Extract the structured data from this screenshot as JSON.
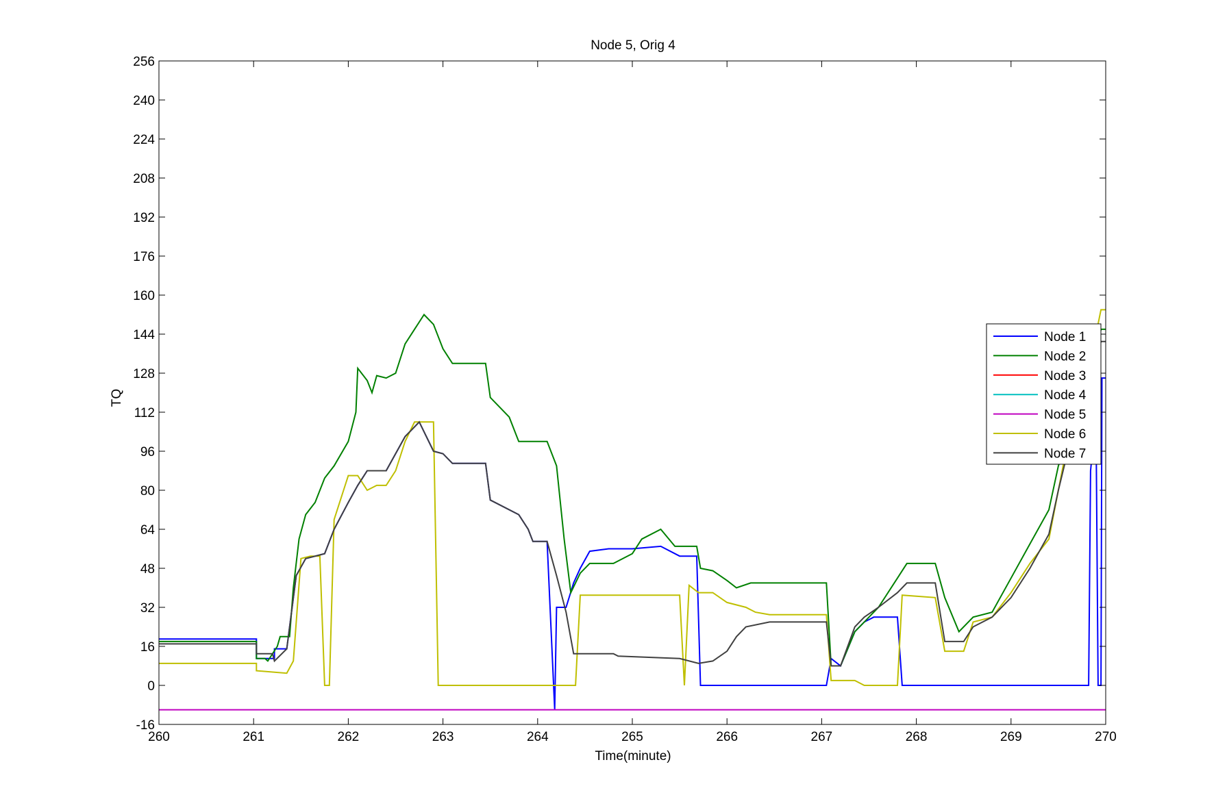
{
  "chart_data": {
    "type": "line",
    "title": "Node 5, Orig 4",
    "xlabel": "Time(minute)",
    "ylabel": "TQ",
    "xlim": [
      260,
      270
    ],
    "ylim": [
      -16,
      256
    ],
    "xticks": [
      260,
      261,
      262,
      263,
      264,
      265,
      266,
      267,
      268,
      269,
      270
    ],
    "yticks": [
      -16,
      0,
      16,
      32,
      48,
      64,
      80,
      96,
      112,
      128,
      144,
      160,
      176,
      192,
      208,
      224,
      240,
      256
    ],
    "grid": false,
    "legend_position": "right",
    "series": [
      {
        "name": "Node  1",
        "color": "#0000ff",
        "points": [
          [
            260,
            19
          ],
          [
            261.03,
            19
          ],
          [
            261.03,
            11
          ],
          [
            261.22,
            11
          ],
          [
            261.22,
            15
          ],
          [
            261.35,
            15
          ],
          [
            261.45,
            45
          ],
          [
            261.55,
            52
          ],
          [
            261.75,
            54
          ],
          [
            261.85,
            64
          ],
          [
            262.0,
            75
          ],
          [
            262.1,
            82
          ],
          [
            262.2,
            88
          ],
          [
            262.4,
            88
          ],
          [
            262.6,
            102
          ],
          [
            262.75,
            108
          ],
          [
            262.9,
            96
          ],
          [
            263.0,
            95
          ],
          [
            263.1,
            91
          ],
          [
            263.45,
            91
          ],
          [
            263.5,
            76
          ],
          [
            263.8,
            70
          ],
          [
            263.9,
            64
          ],
          [
            263.95,
            59
          ],
          [
            264.1,
            59
          ],
          [
            264.18,
            -10
          ],
          [
            264.2,
            32
          ],
          [
            264.3,
            32
          ],
          [
            264.38,
            42
          ],
          [
            264.45,
            48
          ],
          [
            264.55,
            55
          ],
          [
            264.75,
            56
          ],
          [
            265.0,
            56
          ],
          [
            265.3,
            57
          ],
          [
            265.5,
            53
          ],
          [
            265.68,
            53
          ],
          [
            265.72,
            0
          ],
          [
            267.05,
            0
          ],
          [
            267.1,
            11
          ],
          [
            267.2,
            8
          ],
          [
            267.35,
            22
          ],
          [
            267.45,
            26
          ],
          [
            267.55,
            28
          ],
          [
            267.8,
            28
          ],
          [
            267.85,
            0
          ],
          [
            269.82,
            0
          ],
          [
            269.84,
            88
          ],
          [
            269.86,
            96
          ],
          [
            269.9,
            96
          ],
          [
            269.92,
            0
          ],
          [
            269.95,
            0
          ],
          [
            269.96,
            126
          ],
          [
            270,
            126
          ]
        ]
      },
      {
        "name": "Node  2",
        "color": "#008000",
        "points": [
          [
            260,
            18
          ],
          [
            261.03,
            18
          ],
          [
            261.03,
            11
          ],
          [
            261.12,
            11
          ],
          [
            261.15,
            10
          ],
          [
            261.25,
            16
          ],
          [
            261.28,
            20
          ],
          [
            261.38,
            20
          ],
          [
            261.42,
            40
          ],
          [
            261.48,
            60
          ],
          [
            261.55,
            70
          ],
          [
            261.65,
            75
          ],
          [
            261.75,
            85
          ],
          [
            261.85,
            90
          ],
          [
            262.0,
            100
          ],
          [
            262.08,
            112
          ],
          [
            262.1,
            130
          ],
          [
            262.2,
            125
          ],
          [
            262.25,
            120
          ],
          [
            262.3,
            127
          ],
          [
            262.4,
            126
          ],
          [
            262.5,
            128
          ],
          [
            262.6,
            140
          ],
          [
            262.7,
            146
          ],
          [
            262.8,
            152
          ],
          [
            262.9,
            148
          ],
          [
            263.0,
            138
          ],
          [
            263.1,
            132
          ],
          [
            263.45,
            132
          ],
          [
            263.5,
            118
          ],
          [
            263.7,
            110
          ],
          [
            263.8,
            100
          ],
          [
            264.1,
            100
          ],
          [
            264.2,
            90
          ],
          [
            264.28,
            60
          ],
          [
            264.35,
            38
          ],
          [
            264.45,
            46
          ],
          [
            264.55,
            50
          ],
          [
            264.8,
            50
          ],
          [
            265.0,
            54
          ],
          [
            265.1,
            60
          ],
          [
            265.3,
            64
          ],
          [
            265.45,
            57
          ],
          [
            265.68,
            57
          ],
          [
            265.72,
            48
          ],
          [
            265.85,
            47
          ],
          [
            266.0,
            43
          ],
          [
            266.1,
            40
          ],
          [
            266.25,
            42
          ],
          [
            267.05,
            42
          ],
          [
            267.1,
            8
          ],
          [
            267.2,
            8
          ],
          [
            267.35,
            22
          ],
          [
            267.45,
            26
          ],
          [
            267.6,
            32
          ],
          [
            267.8,
            44
          ],
          [
            267.9,
            50
          ],
          [
            268.2,
            50
          ],
          [
            268.3,
            36
          ],
          [
            268.45,
            22
          ],
          [
            268.6,
            28
          ],
          [
            268.8,
            30
          ],
          [
            269.0,
            44
          ],
          [
            269.2,
            58
          ],
          [
            269.4,
            72
          ],
          [
            269.5,
            90
          ],
          [
            269.6,
            100
          ],
          [
            269.75,
            110
          ],
          [
            269.85,
            126
          ],
          [
            269.95,
            146
          ],
          [
            270,
            146
          ]
        ]
      },
      {
        "name": "Node  3",
        "color": "#ff0000",
        "points": []
      },
      {
        "name": "Node  4",
        "color": "#00bfbf",
        "points": []
      },
      {
        "name": "Node  5",
        "color": "#bf00bf",
        "points": [
          [
            260,
            -10
          ],
          [
            270,
            -10
          ]
        ]
      },
      {
        "name": "Node  6",
        "color": "#bfbf00",
        "points": [
          [
            260,
            9
          ],
          [
            261.03,
            9
          ],
          [
            261.03,
            6
          ],
          [
            261.35,
            5
          ],
          [
            261.42,
            10
          ],
          [
            261.5,
            52
          ],
          [
            261.6,
            53
          ],
          [
            261.7,
            53
          ],
          [
            261.75,
            0
          ],
          [
            261.8,
            0
          ],
          [
            261.85,
            68
          ],
          [
            261.95,
            80
          ],
          [
            262.0,
            86
          ],
          [
            262.1,
            86
          ],
          [
            262.2,
            80
          ],
          [
            262.3,
            82
          ],
          [
            262.4,
            82
          ],
          [
            262.5,
            88
          ],
          [
            262.6,
            100
          ],
          [
            262.7,
            108
          ],
          [
            262.8,
            108
          ],
          [
            262.9,
            108
          ],
          [
            262.95,
            0
          ],
          [
            264.4,
            0
          ],
          [
            264.45,
            37
          ],
          [
            265.5,
            37
          ],
          [
            265.55,
            0
          ],
          [
            265.6,
            41
          ],
          [
            265.7,
            38
          ],
          [
            265.85,
            38
          ],
          [
            266.0,
            34
          ],
          [
            266.2,
            32
          ],
          [
            266.3,
            30
          ],
          [
            266.45,
            29
          ],
          [
            267.05,
            29
          ],
          [
            267.1,
            2
          ],
          [
            267.35,
            2
          ],
          [
            267.45,
            0
          ],
          [
            267.8,
            0
          ],
          [
            267.85,
            37
          ],
          [
            268.2,
            36
          ],
          [
            268.3,
            14
          ],
          [
            268.5,
            14
          ],
          [
            268.6,
            26
          ],
          [
            268.8,
            28
          ],
          [
            269.0,
            38
          ],
          [
            269.2,
            50
          ],
          [
            269.4,
            60
          ],
          [
            269.5,
            80
          ],
          [
            269.6,
            100
          ],
          [
            269.7,
            110
          ],
          [
            269.85,
            135
          ],
          [
            269.95,
            154
          ],
          [
            270,
            154
          ]
        ]
      },
      {
        "name": "Node  7",
        "color": "#404040",
        "points": [
          [
            260,
            17
          ],
          [
            261.03,
            17
          ],
          [
            261.03,
            13
          ],
          [
            261.2,
            13
          ],
          [
            261.22,
            10
          ],
          [
            261.35,
            15
          ],
          [
            261.45,
            45
          ],
          [
            261.55,
            52
          ],
          [
            261.75,
            54
          ],
          [
            261.85,
            64
          ],
          [
            262.0,
            75
          ],
          [
            262.1,
            82
          ],
          [
            262.2,
            88
          ],
          [
            262.4,
            88
          ],
          [
            262.6,
            102
          ],
          [
            262.75,
            108
          ],
          [
            262.9,
            96
          ],
          [
            263.0,
            95
          ],
          [
            263.1,
            91
          ],
          [
            263.45,
            91
          ],
          [
            263.5,
            76
          ],
          [
            263.8,
            70
          ],
          [
            263.9,
            64
          ],
          [
            263.95,
            59
          ],
          [
            264.1,
            59
          ],
          [
            264.2,
            45
          ],
          [
            264.3,
            30
          ],
          [
            264.38,
            13
          ],
          [
            264.8,
            13
          ],
          [
            264.85,
            12
          ],
          [
            265.5,
            11
          ],
          [
            265.7,
            9
          ],
          [
            265.85,
            10
          ],
          [
            266.0,
            14
          ],
          [
            266.1,
            20
          ],
          [
            266.2,
            24
          ],
          [
            266.45,
            26
          ],
          [
            267.05,
            26
          ],
          [
            267.1,
            8
          ],
          [
            267.2,
            8
          ],
          [
            267.35,
            24
          ],
          [
            267.45,
            28
          ],
          [
            267.6,
            32
          ],
          [
            267.8,
            38
          ],
          [
            267.9,
            42
          ],
          [
            268.2,
            42
          ],
          [
            268.3,
            18
          ],
          [
            268.5,
            18
          ],
          [
            268.6,
            24
          ],
          [
            268.8,
            28
          ],
          [
            269.0,
            36
          ],
          [
            269.2,
            48
          ],
          [
            269.4,
            62
          ],
          [
            269.5,
            80
          ],
          [
            269.6,
            96
          ],
          [
            269.75,
            110
          ],
          [
            269.85,
            126
          ],
          [
            269.95,
            141
          ],
          [
            270,
            141
          ]
        ]
      }
    ]
  }
}
